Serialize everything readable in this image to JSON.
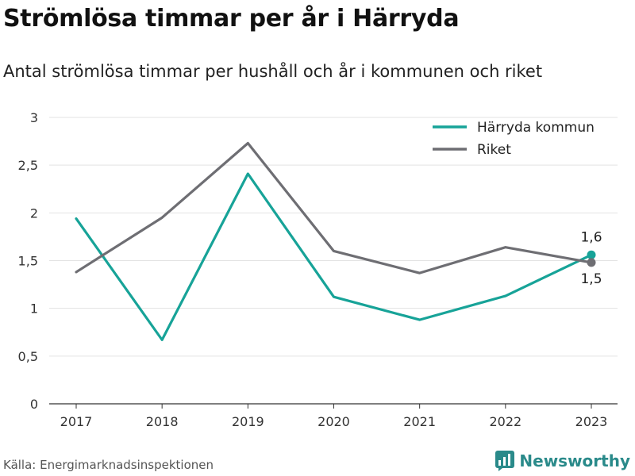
{
  "header": {
    "title": "Strömlösa timmar per år i Härryda",
    "subtitle": "Antal strömlösa timmar per hushåll och år i kommunen och riket"
  },
  "footer": {
    "source": "Källa: Energimarknadsinspektionen",
    "brand": "Newsworthy"
  },
  "chart_data": {
    "type": "line",
    "x": [
      "2017",
      "2018",
      "2019",
      "2020",
      "2021",
      "2022",
      "2023"
    ],
    "ylim": [
      0,
      3
    ],
    "yticks": [
      "0",
      "0,5",
      "1",
      "1,5",
      "2",
      "2,5",
      "3"
    ],
    "yvalues": [
      0,
      0.5,
      1,
      1.5,
      2,
      2.5,
      3
    ],
    "grid": true,
    "legend_position": "top-right",
    "series": [
      {
        "name": "Härryda kommun",
        "color": "#17a398",
        "values": [
          1.94,
          0.67,
          2.41,
          1.12,
          0.88,
          1.13,
          1.56
        ],
        "end_label": "1,6"
      },
      {
        "name": "Riket",
        "color": "#6e6e73",
        "values": [
          1.38,
          1.95,
          2.73,
          1.6,
          1.37,
          1.64,
          1.48
        ],
        "end_label": "1,5"
      }
    ]
  }
}
